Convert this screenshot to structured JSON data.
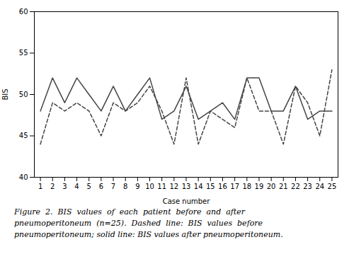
{
  "chart_data": {
    "type": "line",
    "x": [
      1,
      2,
      3,
      4,
      5,
      6,
      7,
      8,
      9,
      10,
      11,
      12,
      13,
      14,
      15,
      16,
      17,
      18,
      19,
      20,
      21,
      22,
      23,
      24,
      25
    ],
    "series": [
      {
        "color": "#444444",
        "line_style": "solid",
        "values": [
          48,
          52,
          49,
          52,
          50,
          48,
          51,
          48,
          50,
          52,
          47,
          48,
          51,
          47,
          48,
          49,
          47,
          52,
          52,
          48,
          48,
          51,
          47,
          48,
          48
        ]
      },
      {
        "color": "#444444",
        "line_style": "dashed",
        "values": [
          44,
          49,
          48,
          49,
          48,
          45,
          49,
          48,
          49,
          51,
          48,
          44,
          52,
          44,
          48,
          47,
          46,
          52,
          48,
          48,
          44,
          51,
          49,
          45,
          53
        ]
      }
    ],
    "xlim": [
      0.5,
      25.5
    ],
    "xticks": [
      1,
      2,
      3,
      4,
      5,
      6,
      7,
      8,
      9,
      10,
      11,
      12,
      13,
      14,
      15,
      16,
      17,
      18,
      19,
      20,
      21,
      22,
      23,
      24,
      25
    ],
    "ylim": [
      40,
      60
    ],
    "yticks": [
      40,
      45,
      50,
      55,
      60
    ],
    "xlabel": "Case number",
    "ylabel": "BIS",
    "grid": false,
    "legend": false,
    "caption": [
      "Figure  2.  BIS  values  of  each  patient  before  and  after",
      "pneumoperitoneum  (n=25).  Dashed  line:  BIS  values  before",
      "pneumoperitoneum; solid line: BIS values after pneumoperitoneum."
    ]
  }
}
